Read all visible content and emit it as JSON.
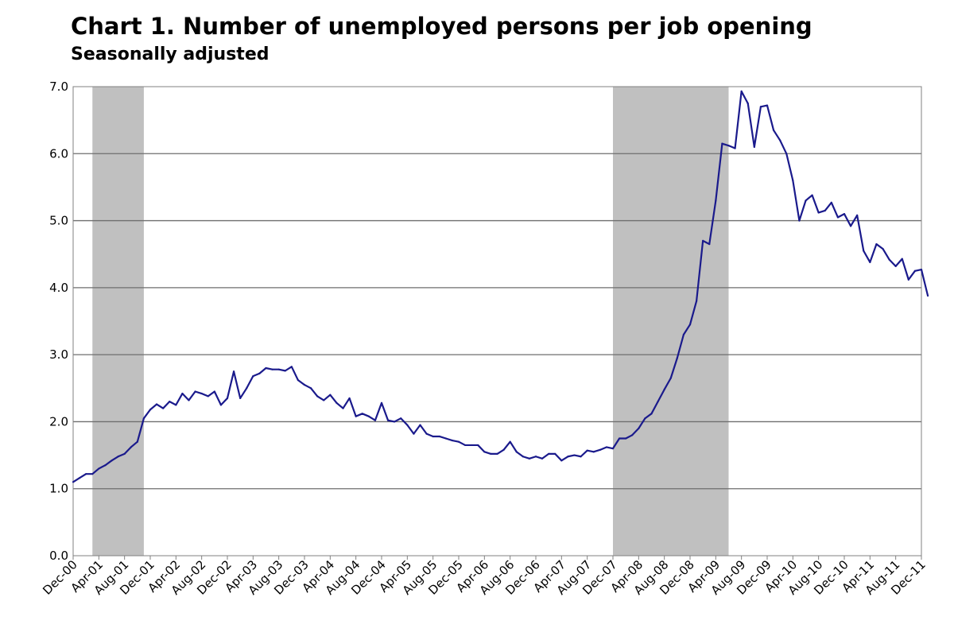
{
  "chart_data": {
    "type": "line",
    "title": "Chart 1. Number of unemployed persons per job opening",
    "subtitle": "Seasonally adjusted",
    "xlabel": "",
    "ylabel": "",
    "ylim": [
      0,
      7
    ],
    "y_ticks": [
      "0.0",
      "1.0",
      "2.0",
      "3.0",
      "4.0",
      "5.0",
      "6.0",
      "7.0"
    ],
    "x_start": "Dec-00",
    "x_end": "Dec-11",
    "x_ticks": [
      "Dec-00",
      "Apr-01",
      "Aug-01",
      "Dec-01",
      "Apr-02",
      "Aug-02",
      "Dec-02",
      "Apr-03",
      "Aug-03",
      "Dec-03",
      "Apr-04",
      "Aug-04",
      "Dec-04",
      "Apr-05",
      "Aug-05",
      "Dec-05",
      "Apr-06",
      "Aug-06",
      "Dec-06",
      "Apr-07",
      "Aug-07",
      "Dec-07",
      "Apr-08",
      "Aug-08",
      "Dec-08",
      "Apr-09",
      "Aug-09",
      "Dec-09",
      "Apr-10",
      "Aug-10",
      "Dec-10",
      "Apr-11",
      "Aug-11",
      "Dec-11"
    ],
    "grid": true,
    "legend": "none",
    "recessions": [
      {
        "start": "Mar-01",
        "end": "Nov-01"
      },
      {
        "start": "Dec-07",
        "end": "Jun-09"
      }
    ],
    "series": [
      {
        "values": [
          1.1,
          1.16,
          1.22,
          1.22,
          1.3,
          1.35,
          1.42,
          1.48,
          1.52,
          1.62,
          1.7,
          2.05,
          2.18,
          2.26,
          2.2,
          2.3,
          2.25,
          2.42,
          2.32,
          2.45,
          2.42,
          2.38,
          2.45,
          2.25,
          2.35,
          2.75,
          2.35,
          2.5,
          2.68,
          2.72,
          2.8,
          2.78,
          2.78,
          2.76,
          2.82,
          2.62,
          2.55,
          2.5,
          2.38,
          2.32,
          2.4,
          2.28,
          2.2,
          2.35,
          2.08,
          2.12,
          2.08,
          2.02,
          2.28,
          2.02,
          2.0,
          2.05,
          1.95,
          1.82,
          1.95,
          1.82,
          1.78,
          1.78,
          1.75,
          1.72,
          1.7,
          1.65,
          1.65,
          1.65,
          1.55,
          1.52,
          1.52,
          1.58,
          1.7,
          1.55,
          1.48,
          1.45,
          1.48,
          1.45,
          1.52,
          1.52,
          1.42,
          1.48,
          1.5,
          1.48,
          1.57,
          1.55,
          1.58,
          1.62,
          1.6,
          1.75,
          1.75,
          1.8,
          1.9,
          2.05,
          2.12,
          2.3,
          2.48,
          2.65,
          2.95,
          3.3,
          3.45,
          3.8,
          4.7,
          4.65,
          5.3,
          6.15,
          6.12,
          6.08,
          6.93,
          6.75,
          6.1,
          6.7,
          6.72,
          6.35,
          6.2,
          6.0,
          5.6,
          5.0,
          5.3,
          5.38,
          5.12,
          5.15,
          5.27,
          5.05,
          5.1,
          4.92,
          5.08,
          4.55,
          4.38,
          4.65,
          4.58,
          4.42,
          4.32,
          4.43,
          4.12,
          4.25,
          4.27,
          3.88
        ]
      }
    ]
  }
}
